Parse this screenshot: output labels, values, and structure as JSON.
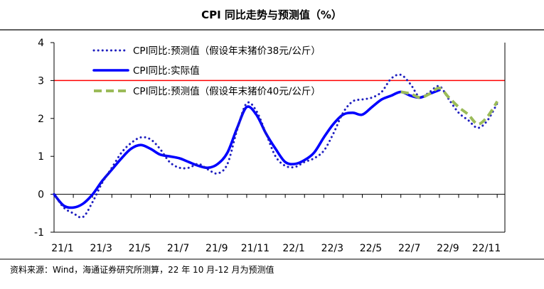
{
  "chart_data": {
    "type": "line",
    "title": "CPI 同比走势与预测值（%）",
    "source_note": "资料来源：Wind，海通证券研究所测算，22 年 10 月-12 月为预测值",
    "xlabel": "",
    "ylabel": "",
    "ylim": [
      -1,
      4
    ],
    "yticks": [
      -1,
      0,
      1,
      2,
      3,
      4
    ],
    "xlim": [
      2021.0,
      2022.95
    ],
    "x_tick_labels": [
      "21/1",
      "21/3",
      "21/5",
      "21/7",
      "21/9",
      "21/11",
      "22/1",
      "22/3",
      "22/5",
      "22/7",
      "22/9",
      "22/11"
    ],
    "x_tick_values": [
      2021.0,
      2021.1667,
      2021.3333,
      2021.5,
      2021.6667,
      2021.8333,
      2022.0,
      2022.1667,
      2022.3333,
      2022.5,
      2022.6667,
      2022.8333
    ],
    "reference_line": {
      "y": 3,
      "color": "#ff0000"
    },
    "legend_position": "top-left",
    "colors": {
      "forecast_38": "#1f1fbf",
      "actual": "#0000ff",
      "forecast_40": "#9bbb59",
      "frame": "#000000"
    },
    "series": [
      {
        "name": "CPI同比:预测值（假设年末猪价38元/公斤）",
        "style": "dotted",
        "x": [
          2021.0,
          2021.042,
          2021.083,
          2021.125,
          2021.167,
          2021.208,
          2021.25,
          2021.292,
          2021.333,
          2021.375,
          2021.417,
          2021.458,
          2021.5,
          2021.542,
          2021.583,
          2021.625,
          2021.667,
          2021.708,
          2021.75,
          2021.792,
          2021.833,
          2021.875,
          2021.917,
          2021.958,
          2022.0,
          2022.042,
          2022.083,
          2022.125,
          2022.167,
          2022.208,
          2022.25,
          2022.292,
          2022.333,
          2022.375,
          2022.417,
          2022.458,
          2022.5,
          2022.542,
          2022.583,
          2022.625,
          2022.667,
          2022.708,
          2022.75,
          2022.792,
          2022.833,
          2022.875,
          2022.917
        ],
        "y": [
          0.0,
          -0.35,
          -0.5,
          -0.6,
          -0.2,
          0.3,
          0.7,
          1.1,
          1.35,
          1.5,
          1.45,
          1.2,
          0.85,
          0.7,
          0.7,
          0.8,
          0.65,
          0.55,
          0.8,
          1.7,
          2.4,
          2.2,
          1.6,
          1.0,
          0.75,
          0.72,
          0.85,
          0.95,
          1.15,
          1.6,
          2.15,
          2.45,
          2.5,
          2.55,
          2.7,
          3.05,
          3.15,
          2.9,
          2.55,
          2.7,
          2.85,
          2.5,
          2.15,
          1.95,
          1.75,
          1.95,
          2.4
        ]
      },
      {
        "name": "CPI同比:实际值",
        "style": "solid",
        "x": [
          2021.0,
          2021.042,
          2021.083,
          2021.125,
          2021.167,
          2021.208,
          2021.25,
          2021.292,
          2021.333,
          2021.375,
          2021.417,
          2021.458,
          2021.5,
          2021.542,
          2021.583,
          2021.625,
          2021.667,
          2021.708,
          2021.75,
          2021.792,
          2021.833,
          2021.875,
          2021.917,
          2021.958,
          2022.0,
          2022.042,
          2022.083,
          2022.125,
          2022.167,
          2022.208,
          2022.25,
          2022.292,
          2022.333,
          2022.375,
          2022.417,
          2022.458,
          2022.5,
          2022.542,
          2022.583,
          2022.625,
          2022.667
        ],
        "y": [
          0.0,
          -0.3,
          -0.35,
          -0.25,
          0.0,
          0.35,
          0.65,
          0.95,
          1.2,
          1.3,
          1.2,
          1.05,
          1.0,
          0.95,
          0.85,
          0.75,
          0.7,
          0.8,
          1.1,
          1.75,
          2.3,
          2.1,
          1.6,
          1.2,
          0.85,
          0.8,
          0.9,
          1.1,
          1.5,
          1.85,
          2.1,
          2.15,
          2.1,
          2.3,
          2.5,
          2.6,
          2.7,
          2.6,
          2.55,
          2.65,
          2.75
        ]
      },
      {
        "name": "CPI同比:预测值（假设年末猪价40元/公斤）",
        "style": "dashed",
        "x": [
          2022.5,
          2022.542,
          2022.583,
          2022.625,
          2022.667,
          2022.708,
          2022.75,
          2022.792,
          2022.833,
          2022.875,
          2022.917
        ],
        "y": [
          2.7,
          2.65,
          2.55,
          2.65,
          2.8,
          2.55,
          2.3,
          2.1,
          1.85,
          2.05,
          2.45
        ]
      }
    ]
  }
}
